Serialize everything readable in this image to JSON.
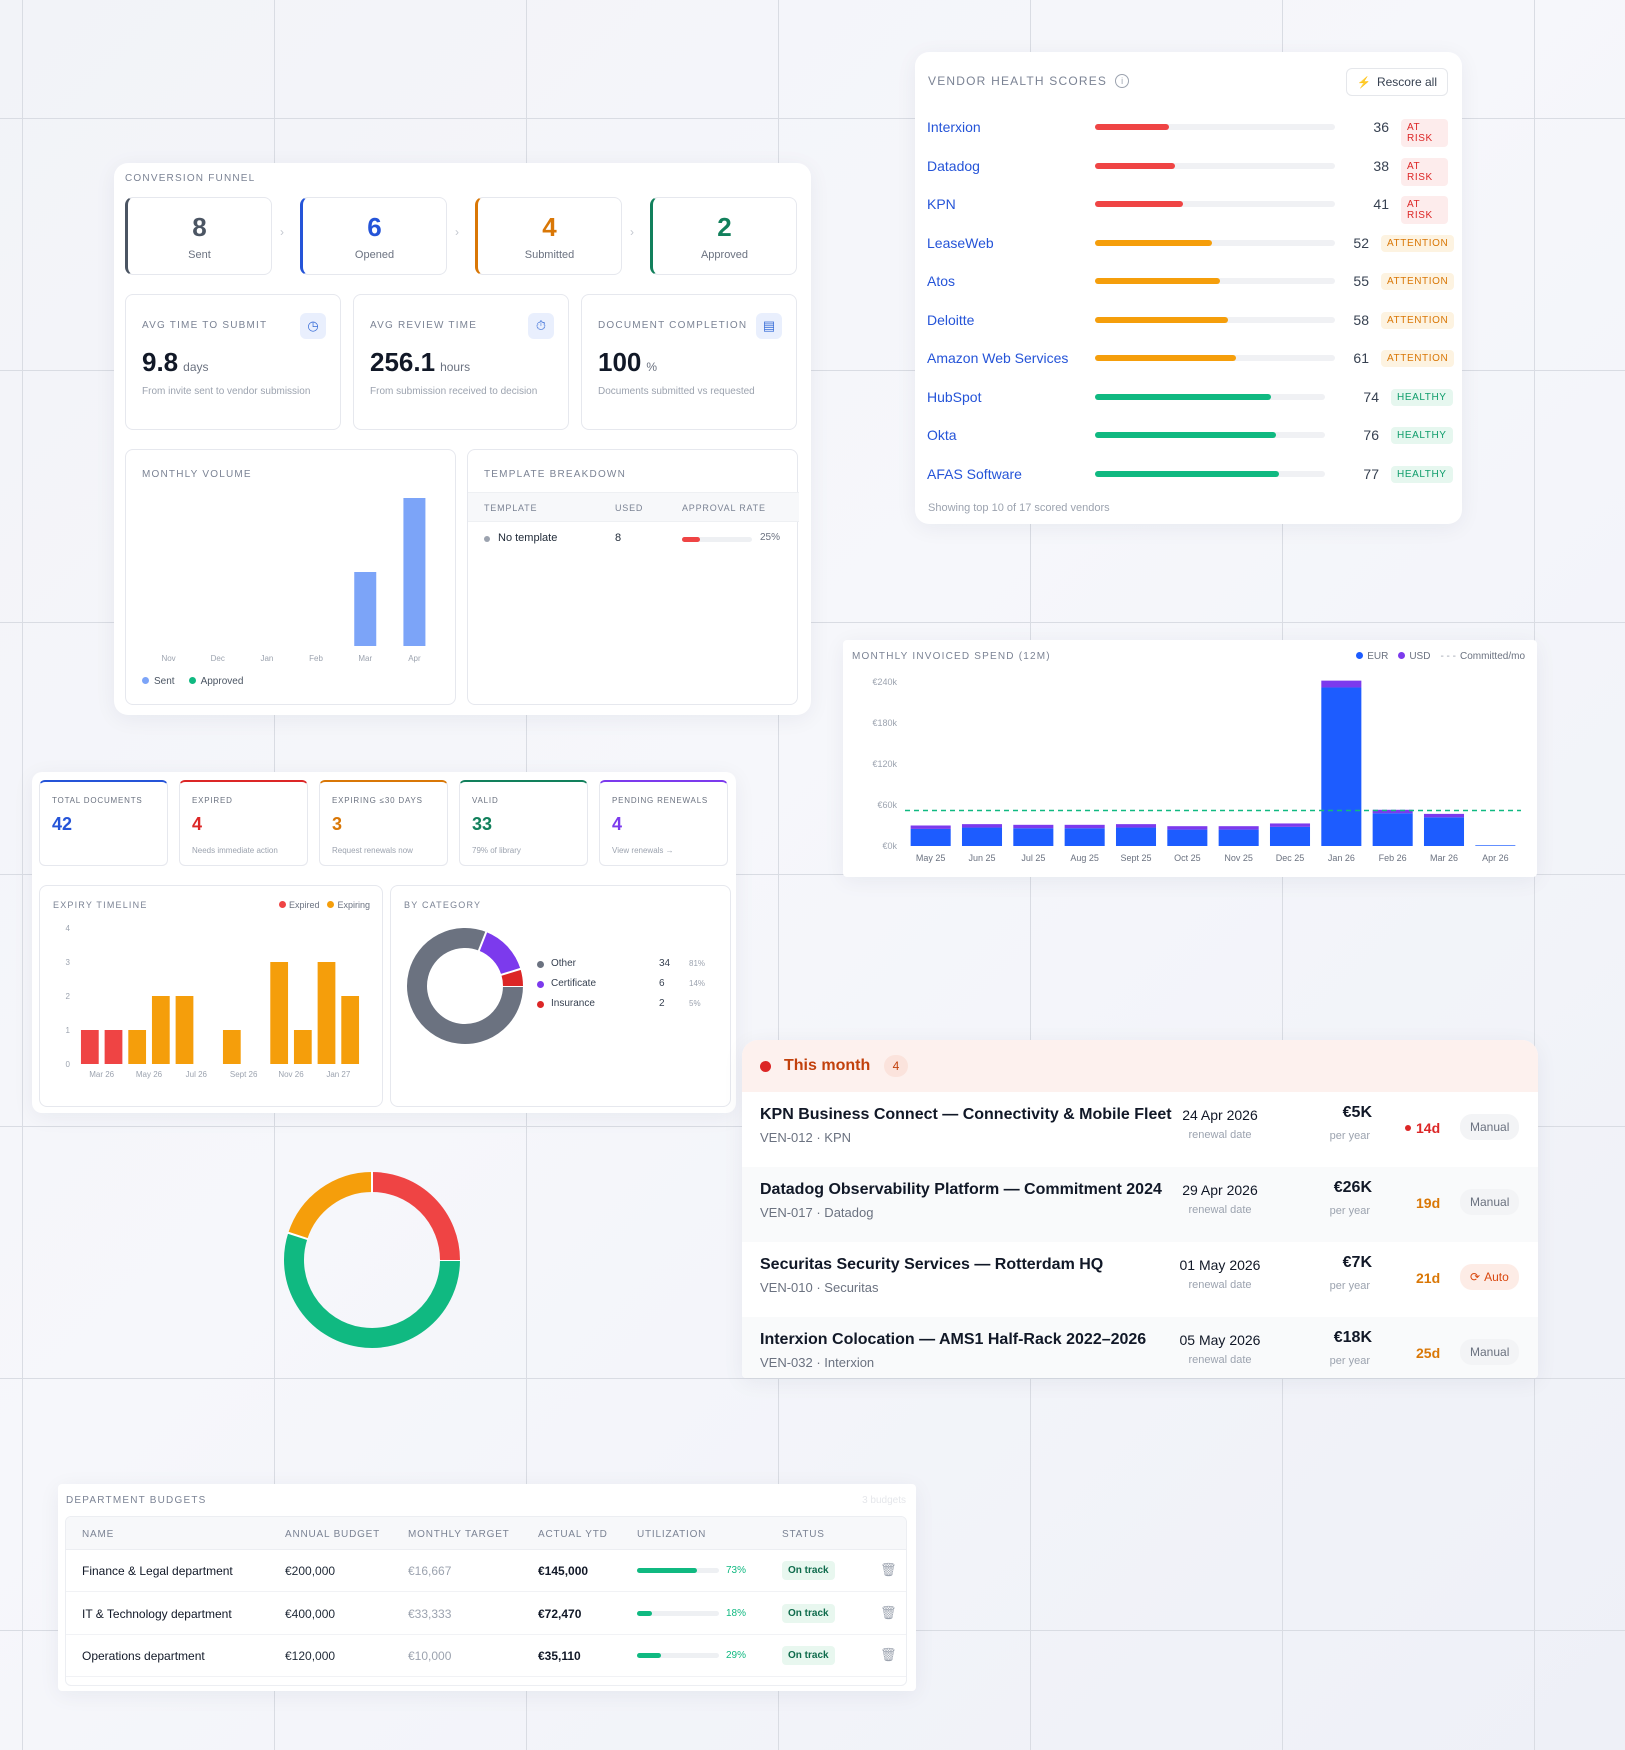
{
  "funnel": {
    "title": "CONVERSION FUNNEL",
    "steps": [
      {
        "value": "8",
        "label": "Sent",
        "color": "#4b5563"
      },
      {
        "value": "6",
        "label": "Opened",
        "color": "#2554d8"
      },
      {
        "value": "4",
        "label": "Submitted",
        "color": "#d97706"
      },
      {
        "value": "2",
        "label": "Approved",
        "color": "#12805c"
      }
    ],
    "kpis": [
      {
        "title": "AVG TIME TO SUBMIT",
        "value": "9.8",
        "unit": "days",
        "desc": "From invite sent to vendor submission",
        "icon": "clock-icon"
      },
      {
        "title": "AVG REVIEW TIME",
        "value": "256.1",
        "unit": "hours",
        "desc": "From submission received to decision",
        "icon": "timer-icon"
      },
      {
        "title": "DOCUMENT COMPLETION",
        "value": "100",
        "unit": "%",
        "desc": "Documents submitted vs requested",
        "icon": "document-icon"
      }
    ]
  },
  "monthly_volume": {
    "title": "MONTHLY VOLUME",
    "legend": [
      "Sent",
      "Approved"
    ]
  },
  "template_breakdown": {
    "title": "TEMPLATE BREAKDOWN",
    "headers": [
      "TEMPLATE",
      "USED",
      "APPROVAL RATE"
    ],
    "rows": [
      {
        "name": "No template",
        "used": "8",
        "rate": 0.25,
        "rate_label": "25%"
      }
    ]
  },
  "vendor_health": {
    "title": "VENDOR HEALTH SCORES",
    "rescore_label": "Rescore all",
    "footer": "Showing top 10 of 17 scored vendors",
    "vendors": [
      {
        "name": "Interxion",
        "score": 36,
        "status": "AT RISK"
      },
      {
        "name": "Datadog",
        "score": 38,
        "status": "AT RISK"
      },
      {
        "name": "KPN",
        "score": 41,
        "status": "AT RISK"
      },
      {
        "name": "LeaseWeb",
        "score": 52,
        "status": "ATTENTION"
      },
      {
        "name": "Atos",
        "score": 55,
        "status": "ATTENTION"
      },
      {
        "name": "Deloitte",
        "score": 58,
        "status": "ATTENTION"
      },
      {
        "name": "Amazon Web Services",
        "score": 61,
        "status": "ATTENTION"
      },
      {
        "name": "HubSpot",
        "score": 74,
        "status": "HEALTHY"
      },
      {
        "name": "Okta",
        "score": 76,
        "status": "HEALTHY"
      },
      {
        "name": "AFAS Software",
        "score": 77,
        "status": "HEALTHY"
      }
    ],
    "colors": {
      "AT RISK": "#ef4444",
      "ATTENTION": "#f59e0b",
      "HEALTHY": "#10b981"
    }
  },
  "spend": {
    "title": "MONTHLY INVOICED SPEND (12M)",
    "legend": [
      "EUR",
      "USD",
      "Committed/mo"
    ]
  },
  "doc_kpis": [
    {
      "title": "TOTAL DOCUMENTS",
      "value": "42",
      "sub": "",
      "color": "#2554d8"
    },
    {
      "title": "EXPIRED",
      "value": "4",
      "sub": "Needs immediate action",
      "color": "#dc2626"
    },
    {
      "title": "EXPIRING ≤30 DAYS",
      "value": "3",
      "sub": "Request renewals now",
      "color": "#d97706"
    },
    {
      "title": "VALID",
      "value": "33",
      "sub": "79% of library",
      "color": "#12805c"
    },
    {
      "title": "PENDING RENEWALS",
      "value": "4",
      "sub": "View renewals →",
      "color": "#7c3aed"
    }
  ],
  "expiry": {
    "title": "EXPIRY TIMELINE",
    "legend": [
      "Expired",
      "Expiring"
    ]
  },
  "by_category": {
    "title": "BY CATEGORY",
    "items": [
      {
        "name": "Other",
        "count": "34",
        "pct": "81%",
        "color": "#6b7280"
      },
      {
        "name": "Certificate",
        "count": "6",
        "pct": "14%",
        "color": "#7c3aed"
      },
      {
        "name": "Insurance",
        "count": "2",
        "pct": "5%",
        "color": "#dc2626"
      }
    ]
  },
  "contracts": {
    "group_label": "This month",
    "group_count": "4",
    "rows": [
      {
        "title": "KPN Business Connect — Connectivity & Mobile Fleet",
        "id": "VEN-012 · KPN",
        "date": "24 Apr 2026",
        "date_label": "renewal date",
        "amount": "€5K",
        "per": "per year",
        "days": "14d",
        "days_color": "#dc2626",
        "urgent": true,
        "badge": "Manual",
        "auto": false
      },
      {
        "title": "Datadog Observability Platform — Commitment 2024",
        "id": "VEN-017 · Datadog",
        "date": "29 Apr 2026",
        "date_label": "renewal date",
        "amount": "€26K",
        "per": "per year",
        "days": "19d",
        "days_color": "#d97706",
        "urgent": false,
        "badge": "Manual",
        "auto": false
      },
      {
        "title": "Securitas Security Services — Rotterdam HQ",
        "id": "VEN-010 · Securitas",
        "date": "01 May 2026",
        "date_label": "renewal date",
        "amount": "€7K",
        "per": "per year",
        "days": "21d",
        "days_color": "#d97706",
        "urgent": false,
        "badge": "Auto",
        "auto": true
      },
      {
        "title": "Interxion Colocation — AMS1 Half-Rack 2022–2026",
        "id": "VEN-032 · Interxion",
        "date": "05 May 2026",
        "date_label": "renewal date",
        "amount": "€18K",
        "per": "per year",
        "days": "25d",
        "days_color": "#d97706",
        "urgent": false,
        "badge": "Manual",
        "auto": false
      }
    ]
  },
  "budgets": {
    "title": "DEPARTMENT BUDGETS",
    "count_label": "3 budgets",
    "headers": [
      "NAME",
      "ANNUAL BUDGET",
      "MONTHLY TARGET",
      "ACTUAL YTD",
      "UTILIZATION",
      "STATUS"
    ],
    "rows": [
      {
        "name": "Finance & Legal department",
        "annual": "€200,000",
        "monthly": "€16,667",
        "actual": "€145,000",
        "util": 0.73,
        "util_label": "73%",
        "status": "On track"
      },
      {
        "name": "IT & Technology department",
        "annual": "€400,000",
        "monthly": "€33,333",
        "actual": "€72,470",
        "util": 0.18,
        "util_label": "18%",
        "status": "On track"
      },
      {
        "name": "Operations department",
        "annual": "€120,000",
        "monthly": "€10,000",
        "actual": "€35,110",
        "util": 0.29,
        "util_label": "29%",
        "status": "On track"
      }
    ]
  },
  "chart_data": [
    {
      "type": "bar",
      "title": "MONTHLY VOLUME",
      "categories": [
        "Nov",
        "Dec",
        "Jan",
        "Feb",
        "Mar",
        "Apr"
      ],
      "series": [
        {
          "name": "Sent",
          "values": [
            0,
            0,
            0,
            0,
            3,
            6
          ],
          "color": "#7ca4f8"
        },
        {
          "name": "Approved",
          "values": [
            0,
            0,
            0,
            0,
            0,
            0
          ],
          "color": "#10b981"
        }
      ],
      "ylim": [
        0,
        6
      ]
    },
    {
      "type": "bar",
      "title": "MONTHLY INVOICED SPEND (12M)",
      "categories": [
        "May 25",
        "Jun 25",
        "Jul 25",
        "Aug 25",
        "Sept 25",
        "Oct 25",
        "Nov 25",
        "Dec 25",
        "Jan 26",
        "Feb 26",
        "Mar 26",
        "Apr 26"
      ],
      "series": [
        {
          "name": "EUR",
          "values": [
            25,
            27,
            26,
            26,
            27,
            24,
            24,
            28,
            232,
            48,
            42,
            1
          ],
          "color": "#1d5cff"
        },
        {
          "name": "USD",
          "values": [
            5,
            5,
            5,
            5,
            5,
            5,
            5,
            5,
            10,
            5,
            5,
            0
          ],
          "color": "#7c3aed"
        }
      ],
      "committed": 52,
      "yticks": [
        "€0k",
        "€60k",
        "€120k",
        "€180k",
        "€240k"
      ],
      "ylim": [
        0,
        240
      ],
      "unit": "€k"
    },
    {
      "type": "bar",
      "title": "EXPIRY TIMELINE",
      "categories": [
        "Mar 26",
        "Apr 26",
        "May 26",
        "Jun 26",
        "Jul 26",
        "Aug 26",
        "Sept 26",
        "Oct 26",
        "Nov 26",
        "Dec 26",
        "Jan 27",
        "Feb 27"
      ],
      "tick_labels": [
        "Mar 26",
        "May 26",
        "Jul 26",
        "Sept 26",
        "Nov 26",
        "Jan 27"
      ],
      "series": [
        {
          "name": "Expired",
          "values": [
            1,
            1,
            0,
            0,
            0,
            0,
            0,
            0,
            0,
            0,
            0,
            0
          ],
          "color": "#ef4444"
        },
        {
          "name": "Expiring",
          "values": [
            0,
            0,
            1,
            2,
            2,
            0,
            1,
            0,
            3,
            1,
            3,
            2
          ],
          "color": "#f59e0b"
        }
      ],
      "yticks": [
        "0",
        "1",
        "2",
        "3",
        "4"
      ],
      "ylim": [
        0,
        4
      ]
    },
    {
      "type": "pie",
      "title": "BY CATEGORY",
      "categories": [
        "Other",
        "Certificate",
        "Insurance"
      ],
      "values": [
        34,
        6,
        2
      ],
      "colors": [
        "#6b7280",
        "#7c3aed",
        "#dc2626"
      ]
    },
    {
      "type": "pie",
      "title": "",
      "categories": [
        "",
        "",
        ""
      ],
      "values": [
        55,
        20,
        25
      ],
      "colors": [
        "#10b981",
        "#f59e0b",
        "#ef4444"
      ]
    }
  ]
}
